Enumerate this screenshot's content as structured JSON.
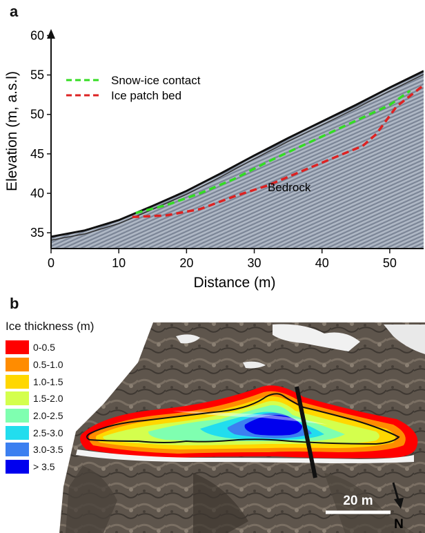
{
  "panels": {
    "a": {
      "letter": "a"
    },
    "b": {
      "letter": "b"
    }
  },
  "chart_data": {
    "type": "line",
    "xlabel": "Distance (m)",
    "ylabel": "Elevation (m, a.s.l)",
    "xlim": [
      0,
      55
    ],
    "ylim": [
      33,
      61
    ],
    "x_ticks": [
      "0",
      "10",
      "20",
      "30",
      "40",
      "50"
    ],
    "y_ticks": [
      "35",
      "40",
      "45",
      "50",
      "55",
      "60"
    ],
    "grid": false,
    "legend_position": "top-left",
    "annotation": "Bedrock",
    "series": [
      {
        "name": "Snow-ice contact",
        "color": "#33dd22",
        "style": "dashed",
        "points": [
          [
            12.5,
            37.5
          ],
          [
            17,
            38.5
          ],
          [
            22,
            40.0
          ],
          [
            27,
            41.8
          ],
          [
            32,
            44.0
          ],
          [
            37,
            46.0
          ],
          [
            42,
            48.0
          ],
          [
            47,
            50.0
          ],
          [
            50,
            51.2
          ],
          [
            53,
            53.0
          ]
        ]
      },
      {
        "name": "Ice patch bed",
        "color": "#dd2222",
        "style": "dashed",
        "points": [
          [
            12,
            37.0
          ],
          [
            17,
            37.2
          ],
          [
            22,
            38.0
          ],
          [
            27,
            39.6
          ],
          [
            32,
            41.0
          ],
          [
            37,
            42.8
          ],
          [
            42,
            44.6
          ],
          [
            46,
            46.0
          ],
          [
            48,
            47.5
          ],
          [
            51,
            51.0
          ],
          [
            55,
            53.7
          ]
        ]
      }
    ],
    "surface_profile": [
      [
        0,
        34.5
      ],
      [
        5,
        35.3
      ],
      [
        10,
        36.6
      ],
      [
        15,
        38.4
      ],
      [
        20,
        40.3
      ],
      [
        25,
        42.5
      ],
      [
        30,
        44.8
      ],
      [
        35,
        47.0
      ],
      [
        40,
        49.1
      ],
      [
        45,
        51.2
      ],
      [
        50,
        53.4
      ],
      [
        55,
        55.5
      ]
    ]
  },
  "map": {
    "legend_title": "Ice thickness (m)",
    "classes": [
      {
        "label": "0-0.5",
        "color": "#ff0000"
      },
      {
        "label": "0.5-1.0",
        "color": "#ff8c00"
      },
      {
        "label": "1.0-1.5",
        "color": "#ffd700"
      },
      {
        "label": "1.5-2.0",
        "color": "#d4ff4d"
      },
      {
        "label": "2.0-2.5",
        "color": "#7fffb0"
      },
      {
        "label": "2.5-3.0",
        "color": "#22ddee"
      },
      {
        "label": "3.0-3.5",
        "color": "#3c7ff0"
      },
      {
        "label": "> 3.5",
        "color": "#0000ee"
      }
    ],
    "scale_label": "20 m",
    "north_label": "N"
  }
}
